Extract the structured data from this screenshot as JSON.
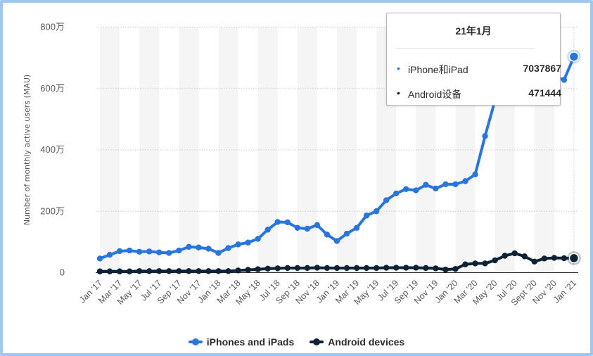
{
  "chart_data": {
    "type": "line",
    "ylabel": "Number of monthly active users (MAU)",
    "ylim": [
      0,
      8000000
    ],
    "yticks": [
      0,
      2000000,
      4000000,
      6000000,
      8000000
    ],
    "ytick_labels": [
      "0",
      "200万",
      "400万",
      "600万",
      "800万"
    ],
    "x": [
      "Jan '17",
      "Feb '17",
      "Mar '17",
      "Apr '17",
      "May '17",
      "Jun '17",
      "Jul '17",
      "Aug '17",
      "Sep '17",
      "Oct '17",
      "Nov '17",
      "Dec '17",
      "Jan '18",
      "Feb '18",
      "Mar '18",
      "Apr '18",
      "May '18",
      "Jun '18",
      "Jul '18",
      "Aug '18",
      "Sep '18",
      "Oct '18",
      "Nov '18",
      "Dec '18",
      "Jan '19",
      "Feb '19",
      "Mar '19",
      "Apr '19",
      "May '19",
      "Jun '19",
      "Jul '19",
      "Aug '19",
      "Sep '19",
      "Oct '19",
      "Nov '19",
      "Dec '19",
      "Jan '20",
      "Feb '20",
      "Mar '20",
      "Apr '20",
      "May '20",
      "Jun '20",
      "Jul '20",
      "Aug '20",
      "Sept '20",
      "Oct '20",
      "Nov '20",
      "Dec '20",
      "Jan '21"
    ],
    "xtick_labels": [
      "Jan '17",
      "Mar '17",
      "May '17",
      "Jul '17",
      "Sep '17",
      "Nov '17",
      "Jan '18",
      "Mar '18",
      "May '18",
      "Jul '18",
      "Sep '18",
      "Nov '18",
      "Jan '19",
      "Mar '19",
      "May '19",
      "Jul '19",
      "Sep '19",
      "Nov '19",
      "Jan '20",
      "Mar '20",
      "May '20",
      "Jul '20",
      "Sept '20",
      "Nov '20",
      "Jan '21"
    ],
    "grid": true,
    "legend_position": "bottom",
    "series": [
      {
        "name": "iPhones and iPads",
        "color": "#2876dd",
        "values": [
          460000,
          580000,
          700000,
          720000,
          680000,
          690000,
          660000,
          640000,
          720000,
          840000,
          820000,
          780000,
          640000,
          800000,
          920000,
          980000,
          1100000,
          1400000,
          1650000,
          1640000,
          1460000,
          1430000,
          1550000,
          1240000,
          1030000,
          1270000,
          1460000,
          1860000,
          2000000,
          2360000,
          2580000,
          2720000,
          2680000,
          2860000,
          2740000,
          2880000,
          2880000,
          2980000,
          3200000,
          4450000,
          5600000,
          6300000,
          6750000,
          6900000,
          6700000,
          6500000,
          6400000,
          6280000,
          7037867
        ]
      },
      {
        "name": "Android devices",
        "color": "#0e2236",
        "values": [
          40000,
          40000,
          40000,
          40000,
          50000,
          50000,
          50000,
          50000,
          50000,
          50000,
          50000,
          50000,
          50000,
          50000,
          70000,
          90000,
          110000,
          130000,
          140000,
          150000,
          150000,
          150000,
          160000,
          150000,
          150000,
          150000,
          150000,
          150000,
          150000,
          160000,
          160000,
          160000,
          160000,
          150000,
          140000,
          100000,
          120000,
          270000,
          300000,
          300000,
          400000,
          550000,
          630000,
          530000,
          360000,
          460000,
          480000,
          470000,
          471444
        ]
      }
    ]
  },
  "tooltip": {
    "title": "21年1月",
    "rows": [
      {
        "bullet": "•",
        "name": "iPhone和iPad",
        "value": "7037867",
        "color": "#2876dd"
      },
      {
        "bullet": "•",
        "name": "Android设备",
        "value": "471444",
        "color": "#0e2236"
      }
    ]
  },
  "legend": {
    "items": [
      {
        "label": "iPhones and iPads",
        "color": "#2876dd"
      },
      {
        "label": "Android devices",
        "color": "#0e2236"
      }
    ]
  }
}
